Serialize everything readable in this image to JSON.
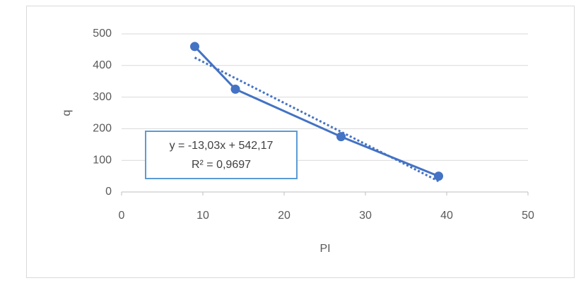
{
  "chart_data": {
    "type": "scatter-line",
    "x_label": "PI",
    "y_label": "q",
    "series": [
      {
        "name": "q",
        "color": "#4472c4",
        "x": [
          9,
          14,
          27,
          39
        ],
        "values": [
          460,
          325,
          175,
          50
        ]
      }
    ],
    "xlim": [
      0,
      50
    ],
    "xticks": [
      0,
      10,
      20,
      30,
      40,
      50
    ],
    "ylim": [
      0,
      500
    ],
    "yticks": [
      0,
      100,
      200,
      300,
      400,
      500
    ],
    "grid": true,
    "trendline": {
      "equation": "y = -13,03x + 542,17",
      "r_squared_label": "R² = 0,9697",
      "slope": -13.03,
      "intercept": 542.17,
      "style": "dotted",
      "color": "#4472c4"
    }
  }
}
